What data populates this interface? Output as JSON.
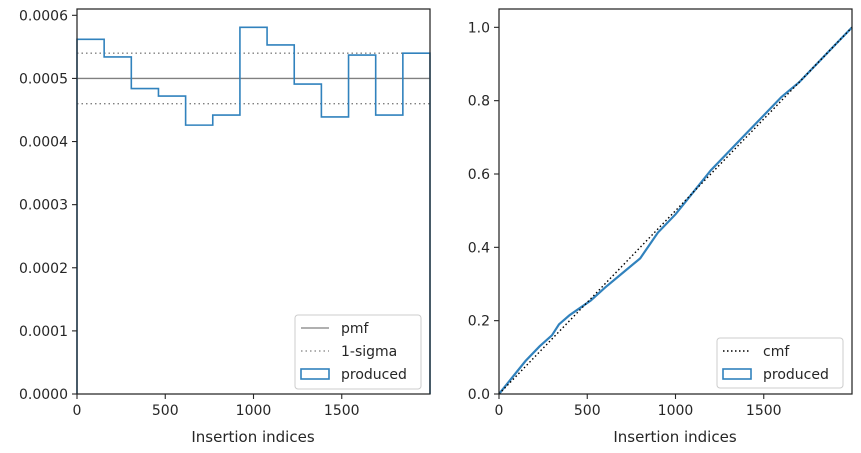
{
  "colors": {
    "produced": "#3182bd",
    "pmf": "#808080",
    "sigma": "#808080",
    "cmf": "#000000",
    "axes": "#262626"
  },
  "chart_data": [
    {
      "type": "histogram",
      "xlabel": "Insertion indices",
      "ylabel": "",
      "xlim": [
        0,
        2000
      ],
      "ylim": [
        0,
        0.00061
      ],
      "xticks": [
        "0",
        "500",
        "1000",
        "1500"
      ],
      "xtick_values": [
        0,
        500,
        1000,
        1500
      ],
      "yticks": [
        "0.0000",
        "0.0001",
        "0.0002",
        "0.0003",
        "0.0004",
        "0.0005",
        "0.0006"
      ],
      "ytick_values": [
        0,
        0.0001,
        0.0002,
        0.0003,
        0.0004,
        0.0005,
        0.0006
      ],
      "bin_edges": [
        0,
        153.8,
        307.7,
        461.5,
        615.4,
        769.2,
        923.1,
        1076.9,
        1230.8,
        1384.6,
        1538.5,
        1692.3,
        1846.2,
        2000
      ],
      "series": [
        {
          "name": "produced",
          "kind": "step",
          "values": [
            0.000562,
            0.000534,
            0.000484,
            0.000472,
            0.000426,
            0.000442,
            0.000581,
            0.000553,
            0.000491,
            0.000439,
            0.000537,
            0.000442,
            0.00054
          ]
        }
      ],
      "reference_lines": [
        {
          "name": "pmf",
          "value": 0.0005,
          "style": "solid"
        },
        {
          "name": "1-sigma",
          "values": [
            0.00054,
            0.00046
          ],
          "style": "dotted"
        }
      ],
      "legend": {
        "placement": "lower-right",
        "entries": [
          "pmf",
          "1-sigma",
          "produced"
        ]
      }
    },
    {
      "type": "line",
      "xlabel": "Insertion indices",
      "ylabel": "",
      "xlim": [
        0,
        2000
      ],
      "ylim": [
        0,
        1.05
      ],
      "xticks": [
        "0",
        "500",
        "1000",
        "1500"
      ],
      "xtick_values": [
        0,
        500,
        1000,
        1500
      ],
      "yticks": [
        "0.0",
        "0.2",
        "0.4",
        "0.6",
        "0.8",
        "1.0"
      ],
      "ytick_values": [
        0,
        0.2,
        0.4,
        0.6,
        0.8,
        1.0
      ],
      "series": [
        {
          "name": "cmf",
          "style": "dotted",
          "x": [
            0,
            2000
          ],
          "y": [
            0,
            1.0
          ]
        },
        {
          "name": "produced",
          "style": "solid",
          "x": [
            0,
            100,
            150,
            230,
            300,
            340,
            400,
            460,
            520,
            600,
            700,
            800,
            900,
            1000,
            1100,
            1200,
            1300,
            1400,
            1500,
            1600,
            1700,
            1800,
            1900,
            2000
          ],
          "y": [
            0,
            0.06,
            0.09,
            0.13,
            0.16,
            0.19,
            0.215,
            0.235,
            0.255,
            0.29,
            0.33,
            0.37,
            0.44,
            0.49,
            0.55,
            0.61,
            0.66,
            0.71,
            0.76,
            0.81,
            0.85,
            0.9,
            0.95,
            1.0
          ]
        }
      ],
      "legend": {
        "placement": "lower-right",
        "entries": [
          "cmf",
          "produced"
        ]
      }
    }
  ]
}
